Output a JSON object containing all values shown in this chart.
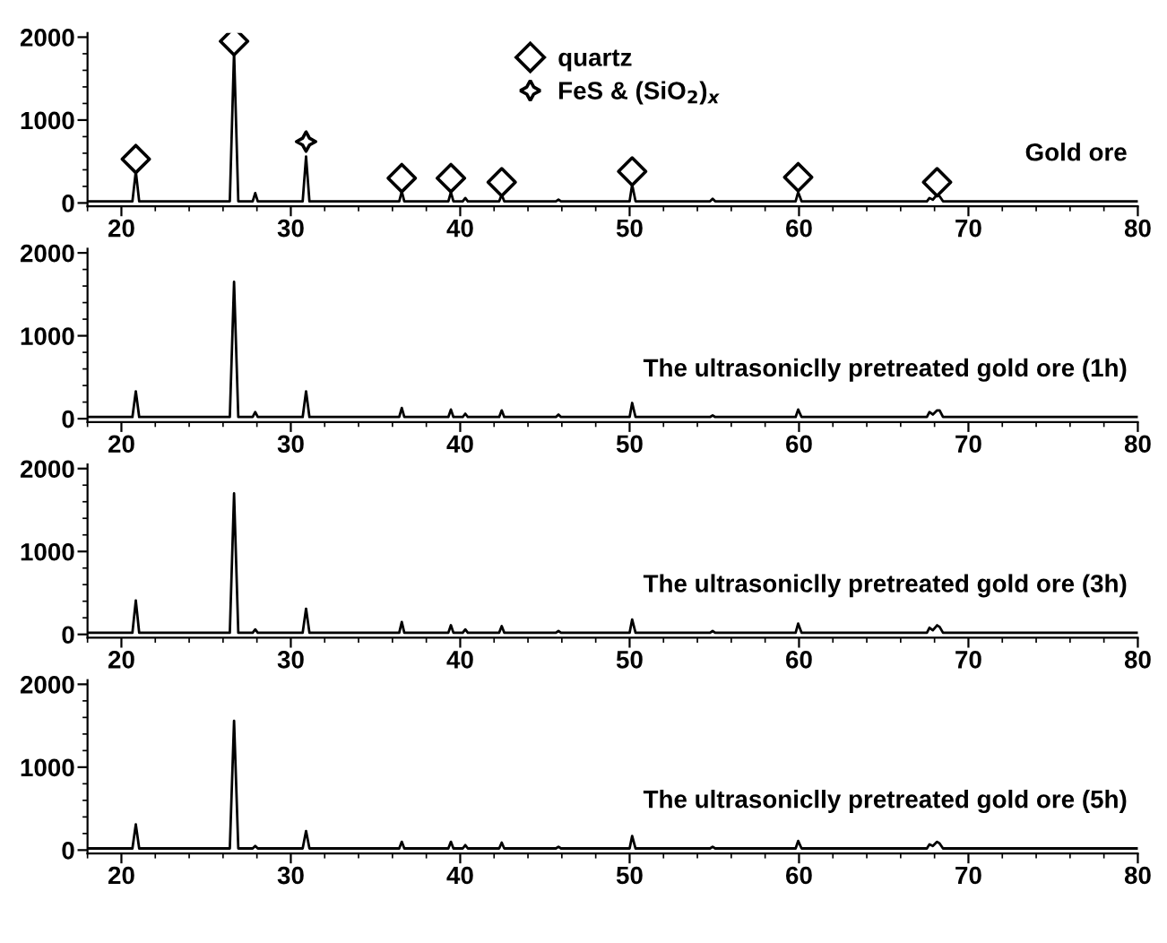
{
  "chart_data": [
    {
      "type": "line",
      "xlim": [
        18,
        80
      ],
      "xticks": [
        20,
        30,
        40,
        50,
        60,
        70,
        80
      ],
      "ylim": [
        -40,
        2050
      ],
      "yticks": [
        0,
        1000,
        2000
      ],
      "legend": "top center",
      "x": [
        18,
        20.65,
        20.85,
        21.05,
        26.4,
        26.65,
        26.9,
        27.75,
        27.9,
        28.05,
        30.7,
        30.9,
        31.1,
        36.4,
        36.55,
        36.7,
        39.3,
        39.45,
        39.6,
        40.15,
        40.3,
        40.45,
        42.3,
        42.45,
        42.6,
        45.65,
        45.8,
        45.95,
        50.0,
        50.15,
        50.35,
        54.75,
        54.9,
        55.05,
        59.8,
        59.95,
        60.15,
        67.55,
        67.7,
        67.9,
        68.15,
        68.3,
        68.5,
        80
      ],
      "series": [
        {
          "name": "Gold ore",
          "color": "#000000",
          "values": [
            20,
            20,
            380,
            20,
            20,
            1830,
            20,
            20,
            120,
            20,
            20,
            560,
            20,
            20,
            140,
            20,
            20,
            130,
            20,
            20,
            60,
            20,
            20,
            100,
            20,
            20,
            40,
            20,
            20,
            220,
            20,
            20,
            50,
            20,
            20,
            130,
            20,
            20,
            60,
            40,
            100,
            80,
            20,
            20
          ]
        },
        {
          "name": "quartz",
          "type": "scatter",
          "marker": "diamond",
          "color": "#000000",
          "x": [
            20.85,
            26.65,
            36.55,
            39.45,
            42.45,
            50.15,
            59.95,
            68.15
          ],
          "values": [
            530,
            1950,
            300,
            300,
            250,
            380,
            310,
            250
          ]
        },
        {
          "name": "FeS & (SiO$_{2}$)$_{x}$",
          "type": "scatter",
          "marker": "star",
          "color": "#000000",
          "x": [
            30.9
          ],
          "values": [
            740
          ]
        }
      ]
    },
    {
      "type": "line",
      "xlim": [
        18,
        80
      ],
      "xticks": [
        20,
        30,
        40,
        50,
        60,
        70,
        80
      ],
      "ylim": [
        -40,
        2050
      ],
      "yticks": [
        0,
        1000,
        2000
      ],
      "x": [
        18,
        20.65,
        20.85,
        21.05,
        26.4,
        26.65,
        26.9,
        27.75,
        27.9,
        28.05,
        30.7,
        30.9,
        31.1,
        36.4,
        36.55,
        36.7,
        39.3,
        39.45,
        39.6,
        40.15,
        40.3,
        40.45,
        42.3,
        42.45,
        42.6,
        45.65,
        45.8,
        45.95,
        50.0,
        50.15,
        50.35,
        54.75,
        54.9,
        55.05,
        59.8,
        59.95,
        60.15,
        67.55,
        67.7,
        67.9,
        68.15,
        68.3,
        68.5,
        80
      ],
      "series": [
        {
          "name": "The ultrasoniclly pretreated gold ore (1h)",
          "color": "#000000",
          "values": [
            20,
            20,
            330,
            20,
            20,
            1650,
            20,
            20,
            80,
            20,
            20,
            330,
            20,
            20,
            130,
            20,
            20,
            110,
            20,
            20,
            60,
            20,
            20,
            100,
            20,
            20,
            50,
            20,
            20,
            190,
            20,
            20,
            40,
            20,
            20,
            110,
            20,
            20,
            80,
            50,
            100,
            100,
            20,
            20
          ]
        }
      ]
    },
    {
      "type": "line",
      "xlim": [
        18,
        80
      ],
      "xticks": [
        20,
        30,
        40,
        50,
        60,
        70,
        80
      ],
      "ylim": [
        -40,
        2050
      ],
      "yticks": [
        0,
        1000,
        2000
      ],
      "x": [
        18,
        20.65,
        20.85,
        21.05,
        26.4,
        26.65,
        26.9,
        27.75,
        27.9,
        28.05,
        30.7,
        30.9,
        31.1,
        36.4,
        36.55,
        36.7,
        39.3,
        39.45,
        39.6,
        40.15,
        40.3,
        40.45,
        42.3,
        42.45,
        42.6,
        45.65,
        45.8,
        45.95,
        50.0,
        50.15,
        50.35,
        54.75,
        54.9,
        55.05,
        59.8,
        59.95,
        60.15,
        67.55,
        67.7,
        67.9,
        68.15,
        68.3,
        68.5,
        80
      ],
      "series": [
        {
          "name": "The ultrasoniclly pretreated gold ore (3h)",
          "color": "#000000",
          "values": [
            20,
            20,
            410,
            20,
            20,
            1700,
            20,
            20,
            60,
            20,
            20,
            310,
            20,
            20,
            150,
            20,
            20,
            110,
            20,
            20,
            60,
            20,
            20,
            100,
            20,
            20,
            40,
            20,
            20,
            180,
            20,
            20,
            40,
            20,
            20,
            130,
            20,
            20,
            80,
            50,
            110,
            90,
            20,
            20
          ]
        }
      ]
    },
    {
      "type": "line",
      "xlim": [
        18,
        80
      ],
      "xticks": [
        20,
        30,
        40,
        50,
        60,
        70,
        80
      ],
      "ylim": [
        -40,
        2050
      ],
      "yticks": [
        0,
        1000,
        2000
      ],
      "x": [
        18,
        20.65,
        20.85,
        21.05,
        26.4,
        26.65,
        26.9,
        27.75,
        27.9,
        28.05,
        30.7,
        30.9,
        31.1,
        36.4,
        36.55,
        36.7,
        39.3,
        39.45,
        39.6,
        40.15,
        40.3,
        40.45,
        42.3,
        42.45,
        42.6,
        45.65,
        45.8,
        45.95,
        50.0,
        50.15,
        50.35,
        54.75,
        54.9,
        55.05,
        59.8,
        59.95,
        60.15,
        67.55,
        67.7,
        67.9,
        68.15,
        68.3,
        68.5,
        80
      ],
      "series": [
        {
          "name": "The ultrasoniclly pretreated gold ore (5h)",
          "color": "#000000",
          "values": [
            20,
            20,
            310,
            20,
            20,
            1560,
            20,
            20,
            50,
            20,
            20,
            230,
            20,
            20,
            100,
            20,
            20,
            100,
            20,
            20,
            60,
            20,
            20,
            90,
            20,
            20,
            40,
            20,
            20,
            170,
            20,
            20,
            40,
            20,
            20,
            110,
            20,
            20,
            70,
            50,
            100,
            80,
            20,
            20
          ]
        }
      ]
    }
  ]
}
